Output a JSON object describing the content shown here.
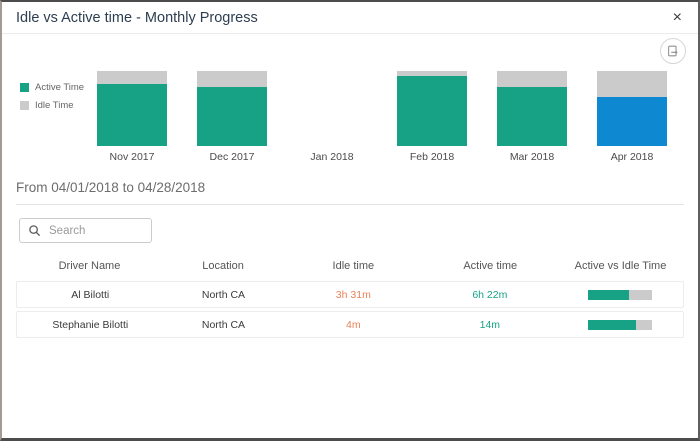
{
  "window": {
    "title": "Idle vs Active time - Monthly Progress",
    "close_label": "×"
  },
  "colors": {
    "active": "#17a286",
    "idle": "#cbcbcb",
    "selected": "#0d88d1",
    "idle_text": "#e8825a",
    "active_text": "#17a286"
  },
  "icons": {
    "close": "close-icon",
    "export": "export-report-icon",
    "search": "search-icon"
  },
  "legend": {
    "items": [
      {
        "label": "Active Time",
        "color": "#17a286"
      },
      {
        "label": "Idle Time",
        "color": "#cbcbcb"
      }
    ]
  },
  "chart_data": {
    "type": "bar",
    "stacked": true,
    "percent_stacked": true,
    "categories": [
      "Nov 2017",
      "Dec 2017",
      "Jan 2018",
      "Feb 2018",
      "Mar 2018",
      "Apr 2018"
    ],
    "series": [
      {
        "name": "Active Time",
        "values": [
          83,
          79,
          0,
          93,
          79,
          66
        ]
      },
      {
        "name": "Idle Time",
        "values": [
          17,
          21,
          0,
          7,
          21,
          34
        ]
      }
    ],
    "selected_category": "Apr 2018",
    "legend_position": "left",
    "ylim": [
      0,
      100
    ],
    "title": "Idle vs Active time - Monthly Progress"
  },
  "period": {
    "label": "From 04/01/2018 to 04/28/2018"
  },
  "search": {
    "placeholder": "Search"
  },
  "table": {
    "headers": [
      "Driver Name",
      "Location",
      "Idle time",
      "Active time",
      "Active vs Idle Time"
    ],
    "rows": [
      {
        "driver": "Al Bilotti",
        "location": "North CA",
        "idle": "3h 31m",
        "active": "6h 22m",
        "active_pct": 64
      },
      {
        "driver": "Stephanie Bilotti",
        "location": "North CA",
        "idle": "4m",
        "active": "14m",
        "active_pct": 75
      }
    ]
  }
}
